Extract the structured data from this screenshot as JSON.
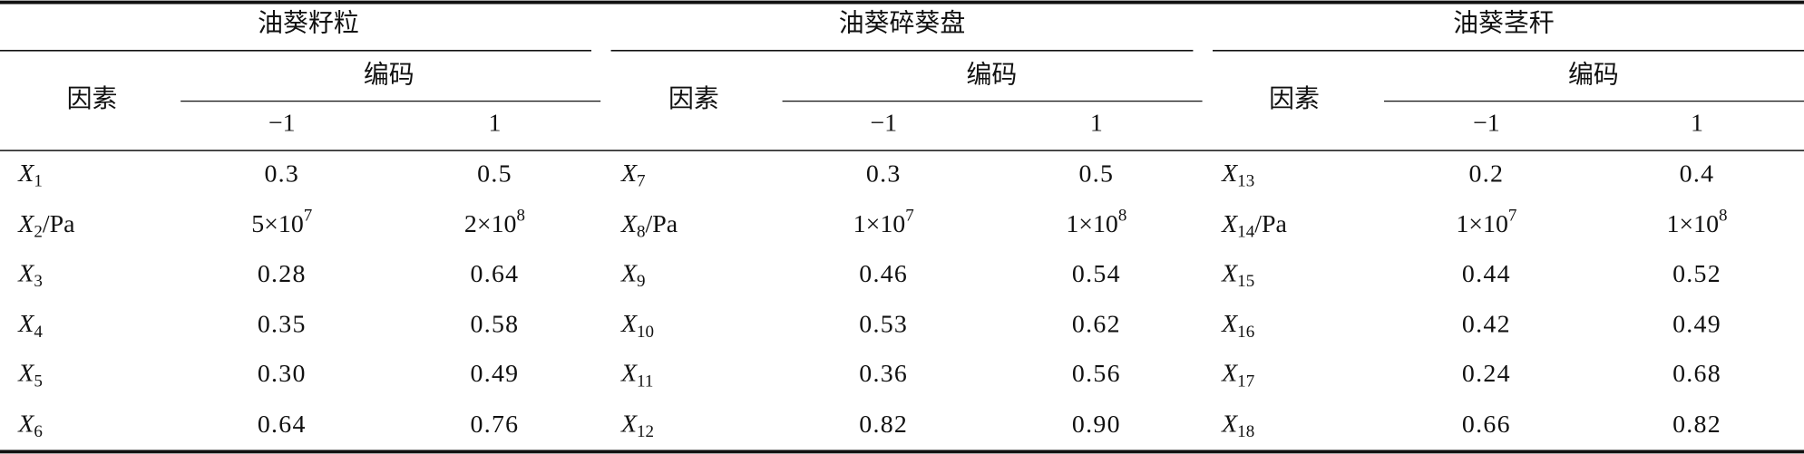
{
  "table": {
    "groups": [
      {
        "title": "油葵籽粒",
        "factor_header": "因素",
        "code_header": "编码",
        "code_levels": [
          "−1",
          "1"
        ],
        "rows": [
          {
            "factor": {
              "symbol": "X",
              "sub": "1"
            },
            "low": "0.3",
            "high": "0.5"
          },
          {
            "factor": {
              "symbol": "X",
              "sub": "2",
              "unit": "/Pa"
            },
            "low": {
              "base": "5×10",
              "exp": "7"
            },
            "high": {
              "base": "2×10",
              "exp": "8"
            }
          },
          {
            "factor": {
              "symbol": "X",
              "sub": "3"
            },
            "low": "0.28",
            "high": "0.64"
          },
          {
            "factor": {
              "symbol": "X",
              "sub": "4"
            },
            "low": "0.35",
            "high": "0.58"
          },
          {
            "factor": {
              "symbol": "X",
              "sub": "5"
            },
            "low": "0.30",
            "high": "0.49"
          },
          {
            "factor": {
              "symbol": "X",
              "sub": "6"
            },
            "low": "0.64",
            "high": "0.76"
          }
        ]
      },
      {
        "title": "油葵碎葵盘",
        "factor_header": "因素",
        "code_header": "编码",
        "code_levels": [
          "−1",
          "1"
        ],
        "rows": [
          {
            "factor": {
              "symbol": "X",
              "sub": "7"
            },
            "low": "0.3",
            "high": "0.5"
          },
          {
            "factor": {
              "symbol": "X",
              "sub": "8",
              "unit": "/Pa"
            },
            "low": {
              "base": "1×10",
              "exp": "7"
            },
            "high": {
              "base": "1×10",
              "exp": "8"
            }
          },
          {
            "factor": {
              "symbol": "X",
              "sub": "9"
            },
            "low": "0.46",
            "high": "0.54"
          },
          {
            "factor": {
              "symbol": "X",
              "sub": "10"
            },
            "low": "0.53",
            "high": "0.62"
          },
          {
            "factor": {
              "symbol": "X",
              "sub": "11"
            },
            "low": "0.36",
            "high": "0.56"
          },
          {
            "factor": {
              "symbol": "X",
              "sub": "12"
            },
            "low": "0.82",
            "high": "0.90"
          }
        ]
      },
      {
        "title": "油葵茎秆",
        "factor_header": "因素",
        "code_header": "编码",
        "code_levels": [
          "−1",
          "1"
        ],
        "rows": [
          {
            "factor": {
              "symbol": "X",
              "sub": "13"
            },
            "low": "0.2",
            "high": "0.4"
          },
          {
            "factor": {
              "symbol": "X",
              "sub": "14",
              "unit": "/Pa"
            },
            "low": {
              "base": "1×10",
              "exp": "7"
            },
            "high": {
              "base": "1×10",
              "exp": "8"
            }
          },
          {
            "factor": {
              "symbol": "X",
              "sub": "15"
            },
            "low": "0.44",
            "high": "0.52"
          },
          {
            "factor": {
              "symbol": "X",
              "sub": "16"
            },
            "low": "0.42",
            "high": "0.49"
          },
          {
            "factor": {
              "symbol": "X",
              "sub": "17"
            },
            "low": "0.24",
            "high": "0.68"
          },
          {
            "factor": {
              "symbol": "X",
              "sub": "18"
            },
            "low": "0.66",
            "high": "0.82"
          }
        ]
      }
    ]
  }
}
